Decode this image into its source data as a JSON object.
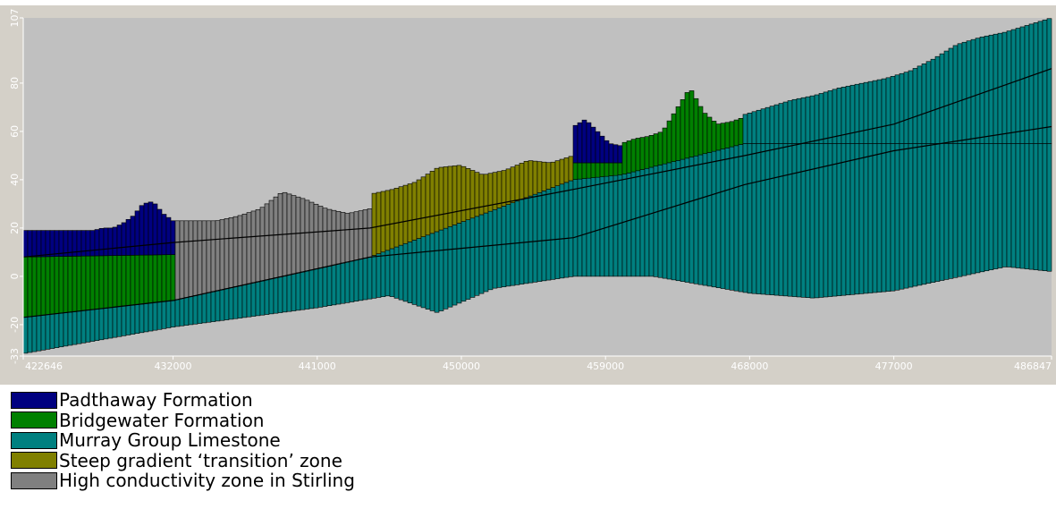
{
  "chart_data": {
    "type": "bar",
    "title": "",
    "xlabel": "",
    "ylabel": "",
    "x_ticks": [
      "422646",
      "432000",
      "441000",
      "450000",
      "459000",
      "468000",
      "477000",
      "486847"
    ],
    "y_ticks": [
      "107",
      "80",
      "60",
      "40",
      "20",
      "0",
      "-20",
      "-33"
    ],
    "xlim": [
      422646,
      486847
    ],
    "ylim": [
      -33,
      107
    ],
    "grid": false,
    "legend_position": "below chart, left",
    "units": [
      {
        "name": "Padthaway Formation",
        "color": "#000080",
        "x_range": [
          422646,
          432000
        ],
        "top": [
          19,
          19,
          19,
          19,
          19,
          19,
          19,
          19,
          20,
          20,
          22,
          25,
          30,
          31,
          26,
          23
        ]
      },
      {
        "name": "High conductivity zone in Stirling",
        "color": "#808080",
        "x_range": [
          432000,
          444300
        ],
        "top": [
          23,
          23,
          23,
          25,
          28,
          35,
          32,
          28,
          26,
          28
        ]
      },
      {
        "name": "Steep gradient ‘transition’ zone",
        "color": "#808000",
        "x_range": [
          444300,
          457000
        ],
        "top": [
          34,
          36,
          39,
          45,
          46,
          42,
          44,
          48,
          47,
          50
        ]
      },
      {
        "name": "Padthaway Formation",
        "color": "#000080",
        "x_range": [
          457000,
          460000
        ],
        "top": [
          62,
          65,
          60,
          55,
          54
        ]
      },
      {
        "name": "Bridgewater Formation",
        "color": "#008000",
        "x_range": [
          460000,
          467700
        ],
        "top": [
          55,
          57,
          58,
          60,
          69,
          78,
          68,
          63,
          64,
          66
        ]
      },
      {
        "name": "Murray Group Limestone",
        "color": "#008080",
        "x_range": [
          467700,
          486847
        ],
        "top": [
          67,
          70,
          73,
          75,
          78,
          80,
          82,
          85,
          90,
          96,
          99,
          101,
          104,
          107
        ]
      }
    ],
    "lower_layers": {
      "green_top": [
        [
          422646,
          8
        ],
        [
          432000,
          9
        ]
      ],
      "teal_top": [
        [
          422646,
          -17
        ],
        [
          432000,
          -10
        ],
        [
          444300,
          8
        ],
        [
          457000,
          40
        ],
        [
          460000,
          42
        ],
        [
          467700,
          55
        ]
      ],
      "base": [
        [
          422646,
          -32
        ],
        [
          432000,
          -21
        ],
        [
          441000,
          -13
        ],
        [
          445500,
          -8
        ],
        [
          448500,
          -15
        ],
        [
          452000,
          -5
        ],
        [
          457000,
          0
        ],
        [
          462000,
          0
        ],
        [
          468000,
          -7
        ],
        [
          472000,
          -9
        ],
        [
          477000,
          -6
        ],
        [
          484000,
          4
        ],
        [
          486847,
          2
        ]
      ]
    },
    "internal_lines": [
      {
        "points": [
          [
            422646,
            8
          ],
          [
            432000,
            14
          ],
          [
            444300,
            20
          ],
          [
            457000,
            36
          ],
          [
            467700,
            50
          ],
          [
            477000,
            63
          ],
          [
            486847,
            86
          ]
        ]
      },
      {
        "points": [
          [
            422646,
            -17
          ],
          [
            432000,
            -10
          ],
          [
            444300,
            8
          ],
          [
            457000,
            16
          ],
          [
            467700,
            38
          ],
          [
            477000,
            52
          ],
          [
            486847,
            62
          ]
        ]
      }
    ]
  },
  "legend": [
    {
      "label": "Padthaway Formation",
      "color": "#000080"
    },
    {
      "label": "Bridgewater Formation",
      "color": "#008000"
    },
    {
      "label": "Murray Group Limestone",
      "color": "#008080"
    },
    {
      "label": "Steep gradient ‘transition’ zone",
      "color": "#808000"
    },
    {
      "label": "High conductivity zone in Stirling",
      "color": "#808080"
    }
  ],
  "colors": {
    "plot_background": "#c0c0c0",
    "axis_text": "#ffffff"
  }
}
